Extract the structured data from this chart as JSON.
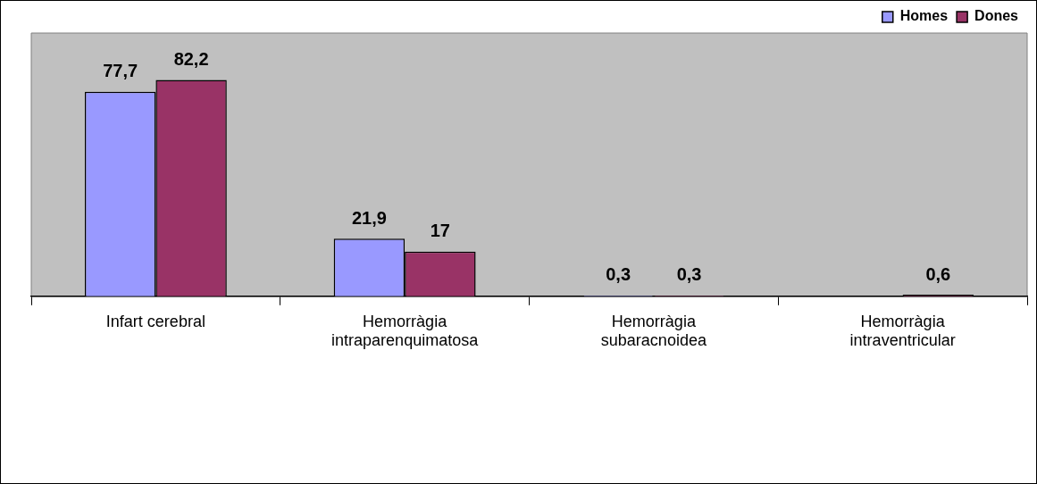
{
  "chart_data": {
    "type": "bar",
    "categories": [
      "Infart cerebral",
      "Hemorràgia intraparenquimatosa",
      "Hemorràgia subaracnoidea",
      "Hemorràgia intraventricular"
    ],
    "series": [
      {
        "name": "Homes",
        "color": "#9999ff",
        "values": [
          77.7,
          21.9,
          0.3,
          null
        ],
        "value_labels": [
          "77,7",
          "21,9",
          "0,3",
          null
        ]
      },
      {
        "name": "Dones",
        "color": "#993366",
        "values": [
          82.2,
          17,
          0.3,
          0.6
        ],
        "value_labels": [
          "82,2",
          "17",
          "0,3",
          "0,6"
        ]
      }
    ],
    "legend": "top right",
    "grid": false
  }
}
